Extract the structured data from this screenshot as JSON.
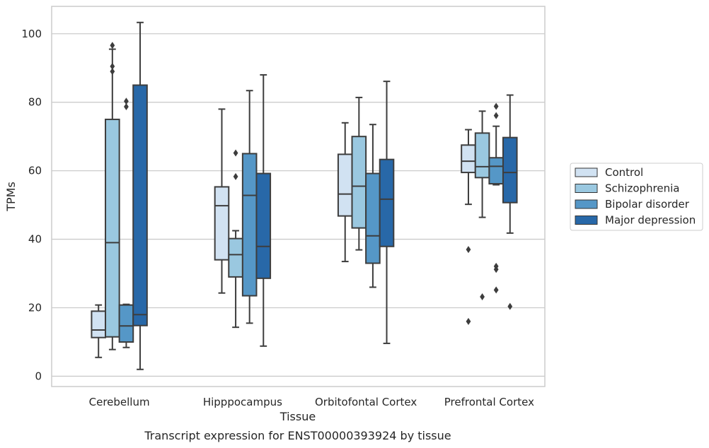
{
  "chart_data": {
    "type": "boxplot",
    "xlabel": "Tissue",
    "ylabel": "TPMs",
    "caption": "Transcript expression for ENST00000393924 by tissue",
    "ylim": [
      -3,
      108
    ],
    "yticks": [
      0,
      20,
      40,
      60,
      80,
      100
    ],
    "grid": "horizontal",
    "legend_position": "right",
    "categories": [
      "Cerebellum",
      "Hipppocampus",
      "Orbitofontal Cortex",
      "Prefrontal Cortex"
    ],
    "series": [
      {
        "name": "Control",
        "color": "#d1e2f2",
        "boxes": [
          {
            "whisker_low": 5.5,
            "q1": 11.3,
            "median": 13.5,
            "q3": 19.0,
            "whisker_high": 20.8,
            "outliers": []
          },
          {
            "whisker_low": 24.3,
            "q1": 34.0,
            "median": 49.8,
            "q3": 55.3,
            "whisker_high": 78.0,
            "outliers": []
          },
          {
            "whisker_low": 33.5,
            "q1": 46.8,
            "median": 53.2,
            "q3": 64.8,
            "whisker_high": 74.0,
            "outliers": []
          },
          {
            "whisker_low": 50.2,
            "q1": 59.5,
            "median": 62.8,
            "q3": 67.5,
            "whisker_high": 72.0,
            "outliers": [
              37.0,
              16.0
            ]
          }
        ]
      },
      {
        "name": "Schizophrenia",
        "color": "#9ac8e0",
        "boxes": [
          {
            "whisker_low": 7.8,
            "q1": 11.5,
            "median": 39.0,
            "q3": 75.0,
            "whisker_high": 95.5,
            "outliers": [
              96.6,
              90.5,
              89.0
            ]
          },
          {
            "whisker_low": 14.3,
            "q1": 29.0,
            "median": 35.5,
            "q3": 40.2,
            "whisker_high": 42.5,
            "outliers": [
              65.2,
              58.3
            ]
          },
          {
            "whisker_low": 36.9,
            "q1": 43.3,
            "median": 55.5,
            "q3": 70.0,
            "whisker_high": 81.4,
            "outliers": []
          },
          {
            "whisker_low": 46.4,
            "q1": 58.0,
            "median": 61.2,
            "q3": 71.0,
            "whisker_high": 77.4,
            "outliers": [
              23.2
            ]
          }
        ]
      },
      {
        "name": "Bipolar disorder",
        "color": "#5597c7",
        "boxes": [
          {
            "whisker_low": 8.4,
            "q1": 10.0,
            "median": 14.7,
            "q3": 20.8,
            "whisker_high": 21.0,
            "outliers": [
              80.3,
              78.7
            ]
          },
          {
            "whisker_low": 15.5,
            "q1": 23.5,
            "median": 52.8,
            "q3": 65.0,
            "whisker_high": 83.4,
            "outliers": []
          },
          {
            "whisker_low": 26.0,
            "q1": 33.0,
            "median": 41.0,
            "q3": 59.2,
            "whisker_high": 73.5,
            "outliers": []
          },
          {
            "whisker_low": 55.9,
            "q1": 56.2,
            "median": 61.3,
            "q3": 63.8,
            "whisker_high": 73.0,
            "outliers": [
              78.8,
              76.1,
              32.1,
              31.2,
              25.2
            ]
          }
        ]
      },
      {
        "name": "Major depression",
        "color": "#2868a8",
        "boxes": [
          {
            "whisker_low": 2.0,
            "q1": 14.8,
            "median": 18.0,
            "q3": 85.0,
            "whisker_high": 103.3,
            "outliers": []
          },
          {
            "whisker_low": 8.8,
            "q1": 28.6,
            "median": 37.9,
            "q3": 59.2,
            "whisker_high": 88.0,
            "outliers": []
          },
          {
            "whisker_low": 9.6,
            "q1": 37.9,
            "median": 51.7,
            "q3": 63.3,
            "whisker_high": 86.1,
            "outliers": []
          },
          {
            "whisker_low": 41.8,
            "q1": 50.7,
            "median": 59.5,
            "q3": 69.7,
            "whisker_high": 82.1,
            "outliers": [
              20.4
            ]
          }
        ]
      }
    ]
  }
}
